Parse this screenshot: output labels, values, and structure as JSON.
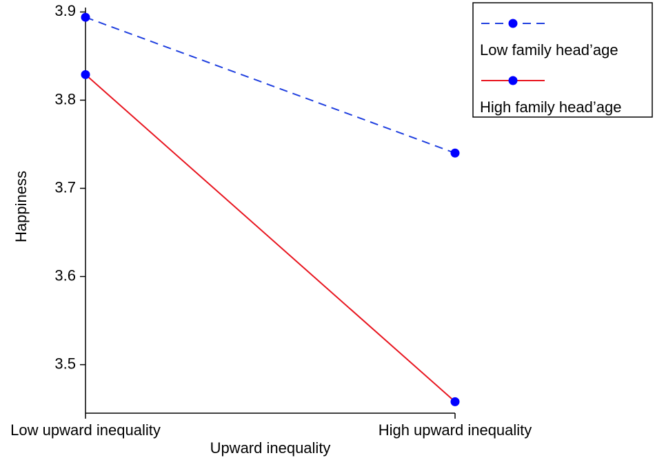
{
  "chart_data": {
    "type": "line",
    "x_label": "Upward inequality",
    "y_label": "Happiness",
    "categories": [
      "Low upward inequality",
      "High upward inequality"
    ],
    "series": [
      {
        "name": "Low family head’age",
        "color": "#1f3fdf",
        "marker_color": "#0000ff",
        "line_style": "dashed",
        "values": [
          3.894,
          3.74
        ]
      },
      {
        "name": "High family head’age",
        "color": "#e8141e",
        "marker_color": "#0000ff",
        "line_style": "solid",
        "values": [
          3.829,
          3.458
        ]
      }
    ],
    "ylim": [
      3.445,
      3.905
    ],
    "yticks": [
      3.5,
      3.6,
      3.7,
      3.8,
      3.9
    ],
    "legend": "top-right",
    "grid": false
  }
}
